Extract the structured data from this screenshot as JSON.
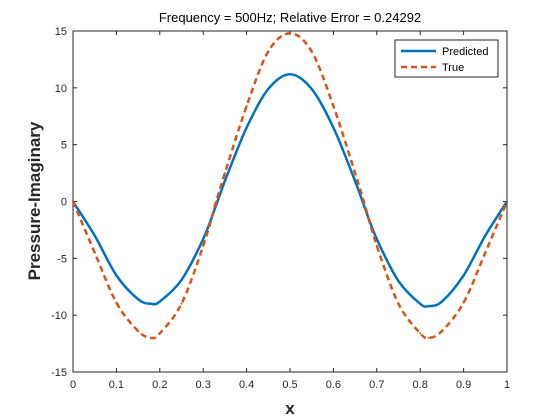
{
  "chart_data": {
    "type": "line",
    "title": "Frequency = 500Hz; Relative Error = 0.24292",
    "xlabel": "x",
    "ylabel": "Pressure-Imaginary",
    "xlim": [
      0,
      1
    ],
    "ylim": [
      -15,
      15
    ],
    "xticks": [
      "0",
      "0.1",
      "0.2",
      "0.3",
      "0.4",
      "0.5",
      "0.6",
      "0.7",
      "0.8",
      "0.9",
      "1"
    ],
    "yticks": [
      "-15",
      "-10",
      "-5",
      "0",
      "5",
      "10",
      "15"
    ],
    "grid": false,
    "legend_position": "top-right",
    "x": [
      0,
      0.05,
      0.1,
      0.15,
      0.18,
      0.2,
      0.25,
      0.3,
      0.33,
      0.35,
      0.4,
      0.45,
      0.5,
      0.55,
      0.6,
      0.65,
      0.67,
      0.7,
      0.75,
      0.8,
      0.82,
      0.85,
      0.9,
      0.95,
      1
    ],
    "series": [
      {
        "name": "Predicted",
        "color": "#0072BD",
        "style": "solid",
        "values": [
          0,
          -3.0,
          -6.5,
          -8.6,
          -9.0,
          -8.8,
          -6.9,
          -3.3,
          -0.3,
          1.8,
          6.5,
          9.9,
          11.2,
          9.9,
          6.5,
          1.8,
          -0.3,
          -3.3,
          -7.0,
          -9.0,
          -9.2,
          -8.8,
          -6.5,
          -3.0,
          0
        ]
      },
      {
        "name": "True",
        "color": "#D95319",
        "style": "dashed",
        "values": [
          0,
          -4.5,
          -8.9,
          -11.4,
          -12.0,
          -11.6,
          -9.0,
          -3.9,
          0,
          2.5,
          8.4,
          13.2,
          14.8,
          13.2,
          8.4,
          2.5,
          0,
          -3.9,
          -9.0,
          -11.6,
          -12.0,
          -11.4,
          -8.9,
          -4.5,
          0
        ]
      }
    ]
  }
}
